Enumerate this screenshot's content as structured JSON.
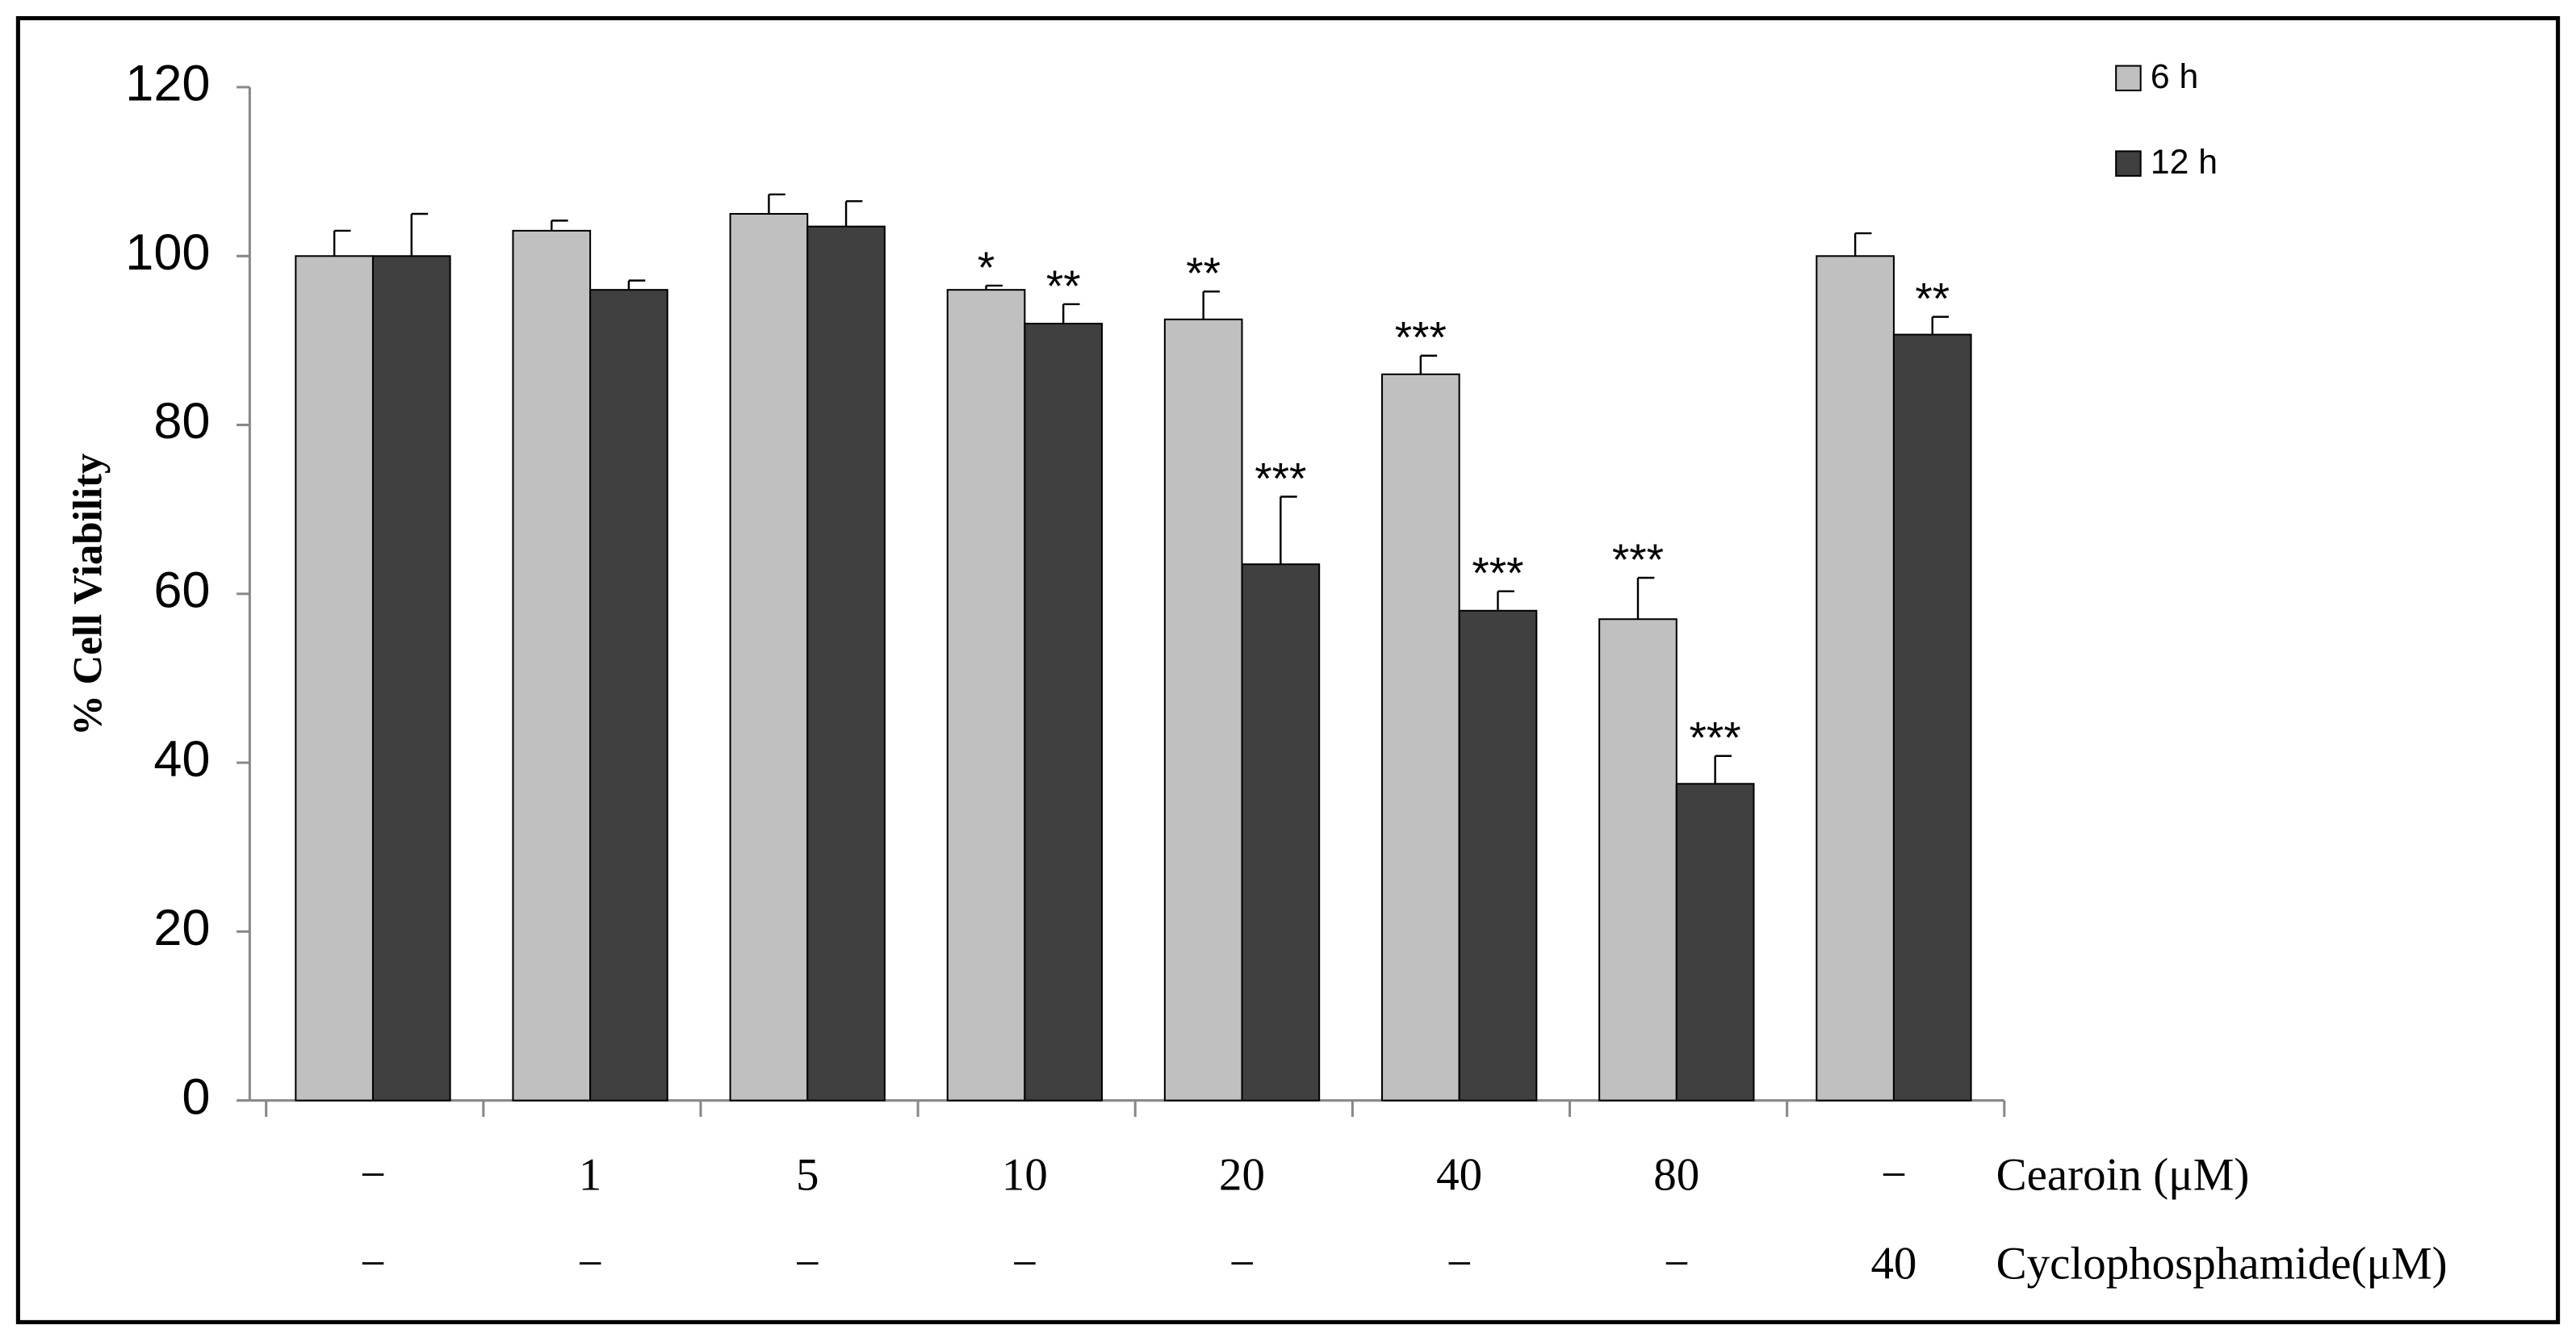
{
  "chart_data": {
    "type": "bar",
    "y_label": "% Cell Viability",
    "categories": [
      "−",
      "1",
      "5",
      "10",
      "20",
      "40",
      "80",
      "−"
    ],
    "category_label": "Cearoin (μM)",
    "categories2": [
      "−",
      "−",
      "−",
      "−",
      "−",
      "−",
      "−",
      "40"
    ],
    "category2_label": "Cyclophosphamide(μM)",
    "series": [
      {
        "name": "6 h",
        "color": "#c0c0c0",
        "values": [
          100,
          103,
          105,
          96,
          92.5,
          86,
          57,
          100
        ],
        "errors": [
          3,
          1.2,
          2.3,
          0.5,
          3.3,
          2.2,
          4.9,
          2.7
        ],
        "annotations": [
          null,
          null,
          null,
          "*",
          "**",
          "***",
          "***",
          null
        ]
      },
      {
        "name": "12 h",
        "color": "#404040",
        "values": [
          100,
          96,
          103.5,
          92,
          63.5,
          58,
          37.5,
          90.7
        ],
        "errors": [
          5,
          1.1,
          3,
          2.3,
          8,
          2.3,
          3.3,
          2.1
        ],
        "annotations": [
          null,
          null,
          null,
          "**",
          "***",
          "***",
          "***",
          "**"
        ]
      }
    ],
    "ylim": [
      0,
      120
    ],
    "yticks": [
      0,
      20,
      40,
      60,
      80,
      100,
      120
    ],
    "grid": false,
    "legend": "top-right"
  }
}
